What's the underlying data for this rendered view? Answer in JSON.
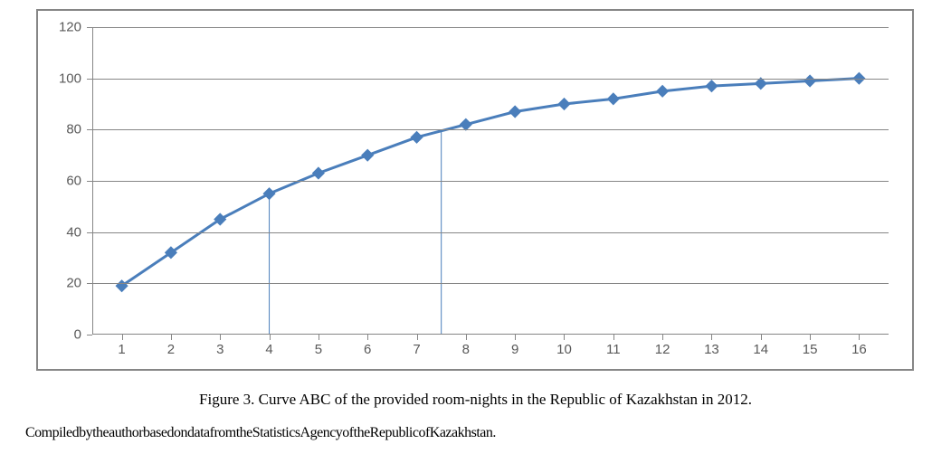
{
  "chart": {
    "type": "line",
    "x_values": [
      1,
      2,
      3,
      4,
      5,
      6,
      7,
      8,
      9,
      10,
      11,
      12,
      13,
      14,
      15,
      16
    ],
    "y_values": [
      19,
      32,
      45,
      55,
      63,
      70,
      77,
      82,
      87,
      90,
      92,
      95,
      97,
      98,
      99,
      100
    ],
    "xlim": [
      0.4,
      16.6
    ],
    "ylim": [
      0,
      120
    ],
    "ytick_step": 20,
    "y_ticks": [
      0,
      20,
      40,
      60,
      80,
      100,
      120
    ],
    "x_ticks": [
      1,
      2,
      3,
      4,
      5,
      6,
      7,
      8,
      9,
      10,
      11,
      12,
      13,
      14,
      15,
      16
    ],
    "line_color": "#4a7ebb",
    "line_width": 3,
    "marker_shape": "diamond",
    "marker_size": 10,
    "marker_color": "#4a7ebb",
    "grid_color": "#868686",
    "axis_color": "#868686",
    "background_color": "#ffffff",
    "tick_label_fontsize": 15,
    "tick_label_color": "#595959",
    "vertical_reference_lines": [
      4.0,
      7.5
    ],
    "vline_color": "#4a7ebb",
    "vline_width": 1,
    "border_color": "#868686",
    "border_width": 2
  },
  "caption": "Figure 3. Curve ABC of the provided room-nights in the Republic of Kazakhstan in 2012.",
  "source": "CompiledbytheauthorbasedondatafromtheStatisticsAgencyoftheRepublicofKazakhstan."
}
